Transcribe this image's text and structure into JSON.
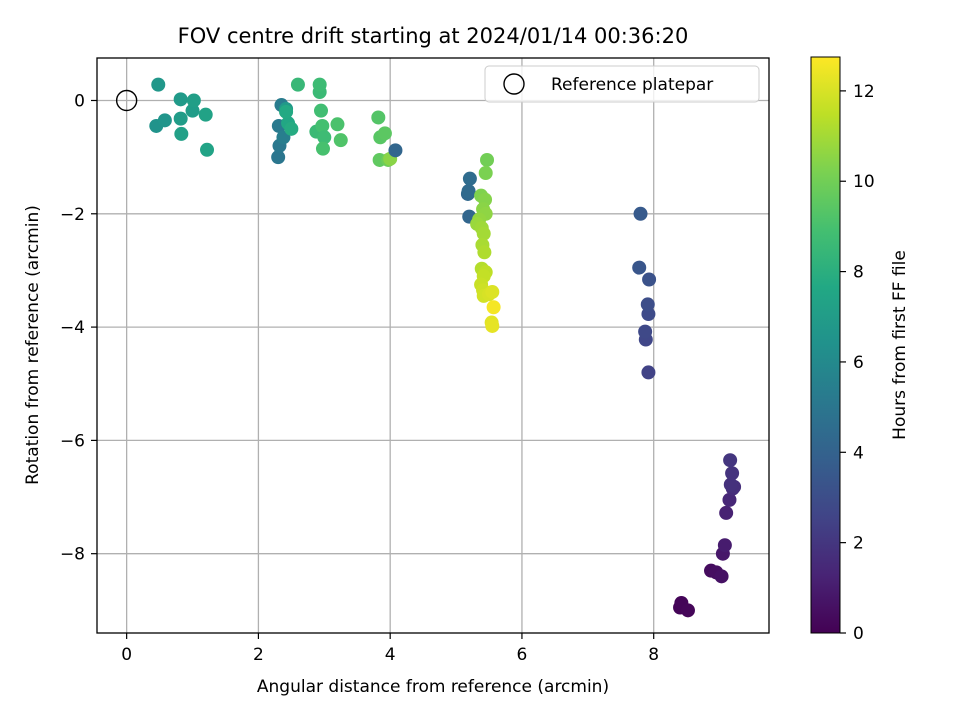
{
  "chart_data": {
    "type": "scatter",
    "title": "FOV centre drift starting at 2024/01/14 00:36:20",
    "xlabel": "Angular distance from reference (arcmin)",
    "ylabel": "Rotation from reference (arcmin)",
    "xlim": [
      -0.45,
      9.75
    ],
    "ylim": [
      -9.4,
      0.75
    ],
    "xticks": [
      0,
      2,
      4,
      6,
      8
    ],
    "yticks": [
      0,
      -2,
      -4,
      -6,
      -8
    ],
    "grid": true,
    "legend": {
      "position": "top-right",
      "entries": [
        "Reference platepar"
      ]
    },
    "reference_point": {
      "x": 0,
      "y": 0
    },
    "colorbar": {
      "label": "Hours from first FF file",
      "range": [
        0,
        12.75
      ],
      "ticks": [
        0,
        2,
        4,
        6,
        8,
        10,
        12
      ],
      "colormap": "viridis"
    },
    "points": [
      [
        8.4,
        -8.95,
        0.1
      ],
      [
        8.42,
        -8.87,
        0.15
      ],
      [
        8.52,
        -9.0,
        0.2
      ],
      [
        8.87,
        -8.3,
        0.4
      ],
      [
        8.95,
        -8.33,
        0.5
      ],
      [
        9.03,
        -8.4,
        0.6
      ],
      [
        9.05,
        -8.0,
        0.8
      ],
      [
        9.08,
        -7.85,
        1.0
      ],
      [
        9.1,
        -7.28,
        1.2
      ],
      [
        9.15,
        -7.05,
        1.4
      ],
      [
        9.2,
        -6.85,
        1.6
      ],
      [
        9.22,
        -6.82,
        1.7
      ],
      [
        9.17,
        -6.78,
        1.8
      ],
      [
        9.19,
        -6.58,
        1.9
      ],
      [
        9.16,
        -6.35,
        2.0
      ],
      [
        7.92,
        -4.8,
        2.5
      ],
      [
        7.88,
        -4.22,
        2.7
      ],
      [
        7.87,
        -4.08,
        2.8
      ],
      [
        7.92,
        -3.77,
        2.9
      ],
      [
        7.91,
        -3.6,
        3.0
      ],
      [
        7.93,
        -3.16,
        3.2
      ],
      [
        7.78,
        -2.95,
        3.4
      ],
      [
        7.8,
        -2.0,
        3.6
      ],
      [
        5.2,
        -2.05,
        4.2
      ],
      [
        5.18,
        -1.65,
        4.3
      ],
      [
        5.19,
        -1.6,
        4.4
      ],
      [
        5.21,
        -1.38,
        4.5
      ],
      [
        2.3,
        -1.0,
        5.0
      ],
      [
        2.32,
        -0.8,
        5.1
      ],
      [
        2.31,
        -0.45,
        5.2
      ],
      [
        2.35,
        -0.08,
        5.3
      ],
      [
        2.38,
        -0.65,
        5.4
      ],
      [
        2.42,
        -0.15,
        6.8
      ],
      [
        0.45,
        -0.45,
        6.5
      ],
      [
        0.58,
        -0.35,
        6.6
      ],
      [
        0.48,
        0.28,
        6.7
      ],
      [
        0.82,
        0.02,
        6.9
      ],
      [
        0.82,
        -0.32,
        7.0
      ],
      [
        1.0,
        -0.18,
        7.0
      ],
      [
        1.02,
        0.0,
        7.1
      ],
      [
        0.83,
        -0.59,
        7.2
      ],
      [
        1.2,
        -0.25,
        7.3
      ],
      [
        1.22,
        -0.87,
        7.4
      ],
      [
        2.45,
        -0.4,
        7.6
      ],
      [
        2.5,
        -0.5,
        7.8
      ],
      [
        2.42,
        -0.2,
        7.7
      ],
      [
        2.6,
        0.28,
        8.5
      ],
      [
        2.88,
        -0.55,
        8.6
      ],
      [
        2.93,
        0.15,
        8.6
      ],
      [
        2.93,
        0.28,
        8.7
      ],
      [
        2.95,
        -0.18,
        8.8
      ],
      [
        2.97,
        -0.45,
        8.9
      ],
      [
        3.0,
        -0.65,
        8.7
      ],
      [
        2.98,
        -0.85,
        9.0
      ],
      [
        3.2,
        -0.42,
        9.1
      ],
      [
        3.25,
        -0.7,
        9.2
      ],
      [
        3.82,
        -0.3,
        9.3
      ],
      [
        3.85,
        -0.65,
        9.4
      ],
      [
        3.92,
        -0.58,
        9.5
      ],
      [
        3.84,
        -1.05,
        9.6
      ],
      [
        3.97,
        -1.05,
        9.9
      ],
      [
        4.0,
        -1.03,
        10.5
      ],
      [
        4.08,
        -0.88,
        4.2
      ],
      [
        5.47,
        -1.05,
        10.0
      ],
      [
        5.45,
        -1.28,
        10.2
      ],
      [
        5.38,
        -1.68,
        10.3
      ],
      [
        5.44,
        -1.75,
        10.4
      ],
      [
        5.41,
        -1.92,
        10.5
      ],
      [
        5.45,
        -2.0,
        10.6
      ],
      [
        5.35,
        -2.1,
        10.7
      ],
      [
        5.32,
        -2.18,
        10.8
      ],
      [
        5.39,
        -2.25,
        10.9
      ],
      [
        5.42,
        -2.35,
        11.0
      ],
      [
        5.4,
        -2.55,
        11.1
      ],
      [
        5.43,
        -2.68,
        11.2
      ],
      [
        5.39,
        -2.97,
        11.3
      ],
      [
        5.45,
        -3.03,
        11.5
      ],
      [
        5.42,
        -3.1,
        11.6
      ],
      [
        5.38,
        -3.25,
        11.7
      ],
      [
        5.41,
        -3.35,
        11.8
      ],
      [
        5.42,
        -3.45,
        11.9
      ],
      [
        5.5,
        -3.42,
        12.0
      ],
      [
        5.55,
        -3.38,
        12.1
      ],
      [
        5.57,
        -3.65,
        12.6
      ],
      [
        5.54,
        -3.92,
        12.2
      ],
      [
        5.55,
        -3.98,
        12.3
      ]
    ]
  }
}
